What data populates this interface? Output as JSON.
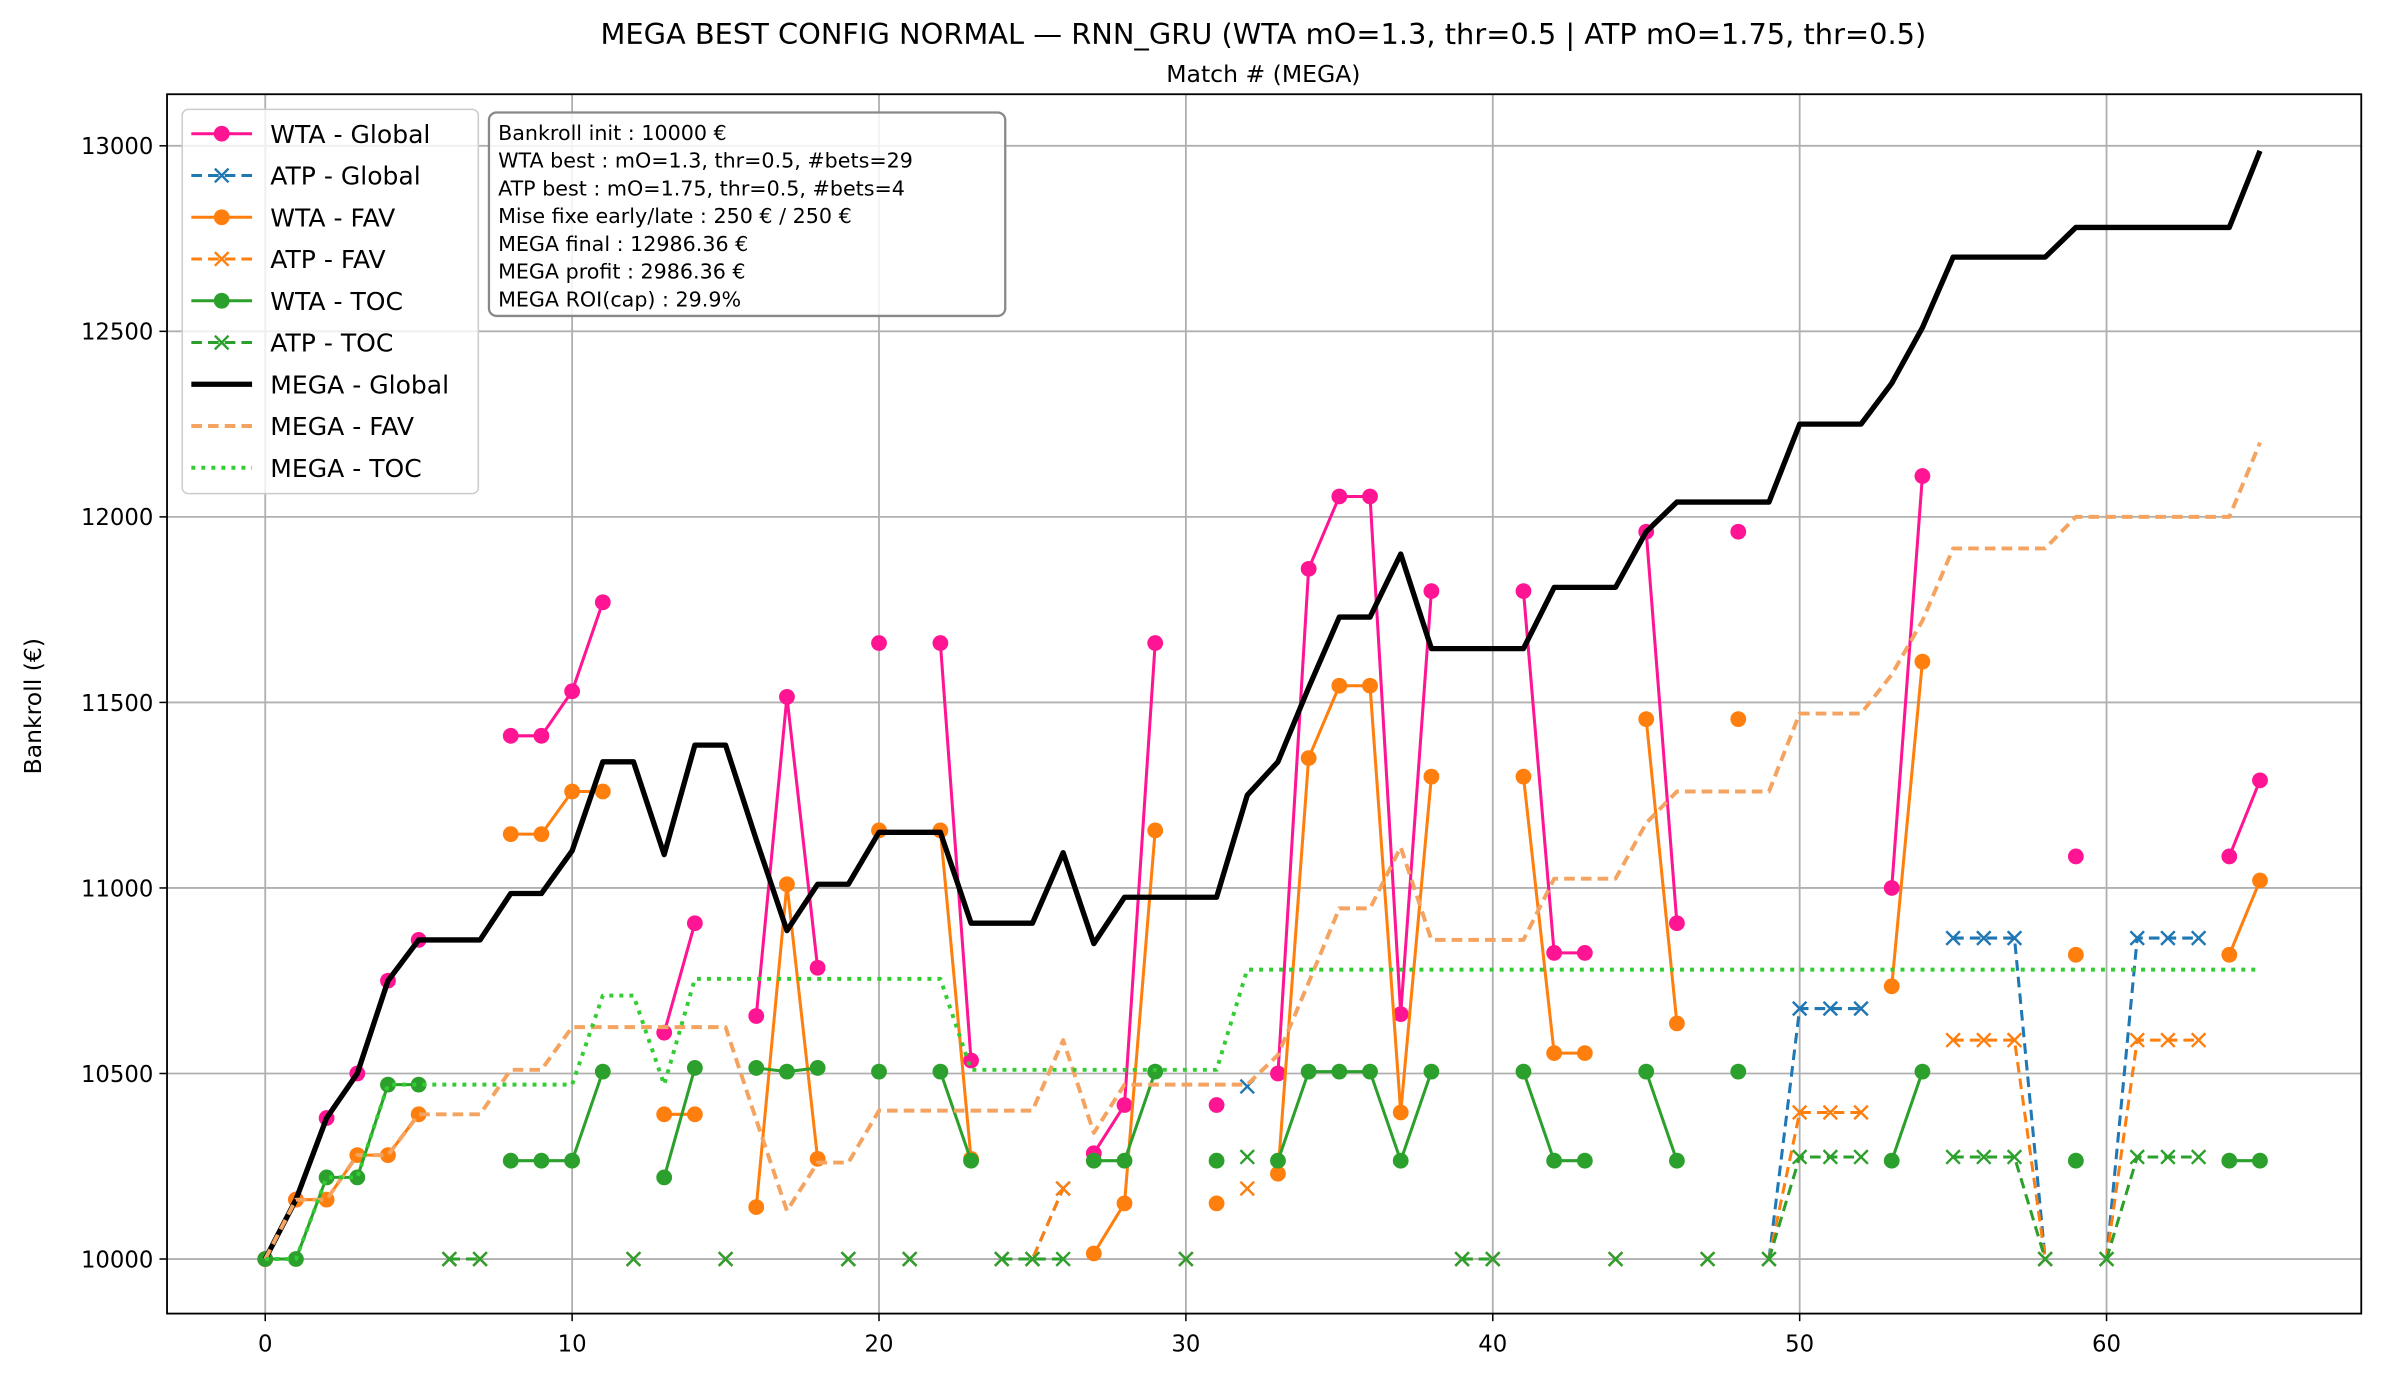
{
  "chart_data": {
    "type": "line",
    "title": "MEGA BEST CONFIG NORMAL — RNN_GRU (WTA mO=1.3, thr=0.5 | ATP mO=1.75, thr=0.5)",
    "subtitle": "Match # (MEGA)",
    "xlabel": "",
    "ylabel": "Bankroll (€)",
    "xlim": [
      -3.2,
      68.3
    ],
    "ylim": [
      9853,
      13139
    ],
    "xticks": [
      0,
      10,
      20,
      30,
      40,
      50,
      60
    ],
    "yticks": [
      10000,
      10500,
      11000,
      11500,
      12000,
      12500,
      13000
    ],
    "grid": true,
    "legend_position": "top-left",
    "info_box": [
      "Bankroll init : 10000 €",
      "WTA best : mO=1.3, thr=0.5, #bets=29",
      "ATP best : mO=1.75, thr=0.5, #bets=4",
      "Mise fixe early/late : 250 € / 250 €",
      "MEGA final : 12986.36 €",
      "MEGA profit : 2986.36 €",
      "MEGA ROI(cap) : 29.9%"
    ],
    "series": [
      {
        "name": "WTA - Global",
        "color": "#ff1493",
        "style": "solid",
        "marker": "o",
        "width": 2,
        "x": [
          0,
          1,
          2,
          3,
          4,
          5,
          8,
          9,
          10,
          11,
          13,
          14,
          16,
          17,
          18,
          20,
          22,
          23,
          27,
          28,
          29,
          31,
          33,
          34,
          35,
          36,
          37,
          38,
          41,
          42,
          43,
          45,
          46,
          48,
          53,
          54,
          59,
          64,
          65
        ],
        "y": [
          10000,
          10160,
          10380,
          10500,
          10750,
          10860,
          11410,
          11410,
          11530,
          11770,
          10610,
          10905,
          10655,
          11515,
          10785,
          11660,
          11660,
          10535,
          10285,
          10415,
          11660,
          10415,
          10500,
          11860,
          12055,
          12055,
          10660,
          11800,
          11800,
          10825,
          10825,
          11960,
          10905,
          11960,
          11000,
          12110,
          11085,
          11085,
          11290
        ]
      },
      {
        "name": "ATP - Global",
        "color": "#1f77b4",
        "style": "dashed",
        "marker": "x",
        "width": 2,
        "x": [
          6,
          7,
          12,
          15,
          19,
          21,
          24,
          25,
          26,
          30,
          32,
          39,
          40,
          44,
          47,
          49,
          50,
          51,
          52,
          55,
          56,
          57,
          58,
          60,
          61,
          62,
          63
        ],
        "y": [
          10000,
          10000,
          10000,
          10000,
          10000,
          10000,
          10000,
          10000,
          10190,
          10000,
          10465,
          10000,
          10000,
          10000,
          10000,
          10000,
          10675,
          10675,
          10675,
          10865,
          10865,
          10865,
          10000,
          10000,
          10865,
          10865,
          10865
        ]
      },
      {
        "name": "WTA - FAV",
        "color": "#ff7f0e",
        "style": "solid",
        "marker": "o",
        "width": 2,
        "x": [
          0,
          1,
          2,
          3,
          4,
          5,
          8,
          9,
          10,
          11,
          13,
          14,
          16,
          17,
          18,
          20,
          22,
          23,
          27,
          28,
          29,
          31,
          33,
          34,
          35,
          36,
          37,
          38,
          41,
          42,
          43,
          45,
          46,
          48,
          53,
          54,
          59,
          64,
          65
        ],
        "y": [
          10000,
          10160,
          10160,
          10280,
          10280,
          10390,
          11145,
          11145,
          11260,
          11260,
          10390,
          10390,
          10140,
          11010,
          10270,
          11155,
          11155,
          10270,
          10015,
          10150,
          11155,
          10150,
          10230,
          11350,
          11545,
          11545,
          10395,
          11300,
          11300,
          10555,
          10555,
          11455,
          10635,
          11455,
          10735,
          11610,
          10820,
          10820,
          11020
        ]
      },
      {
        "name": "ATP - FAV",
        "color": "#ff7f0e",
        "style": "dashed",
        "marker": "x",
        "width": 2,
        "x": [
          6,
          7,
          12,
          15,
          19,
          21,
          24,
          25,
          26,
          30,
          32,
          39,
          40,
          44,
          47,
          49,
          50,
          51,
          52,
          55,
          56,
          57,
          58,
          60,
          61,
          62,
          63
        ],
        "y": [
          10000,
          10000,
          10000,
          10000,
          10000,
          10000,
          10000,
          10000,
          10190,
          10000,
          10190,
          10000,
          10000,
          10000,
          10000,
          10000,
          10395,
          10395,
          10395,
          10590,
          10590,
          10590,
          10000,
          10000,
          10590,
          10590,
          10590
        ]
      },
      {
        "name": "WTA - TOC",
        "color": "#2ca02c",
        "style": "solid",
        "marker": "o",
        "width": 2,
        "x": [
          0,
          1,
          2,
          3,
          4,
          5,
          8,
          9,
          10,
          11,
          13,
          14,
          16,
          17,
          18,
          20,
          22,
          23,
          27,
          28,
          29,
          31,
          33,
          34,
          35,
          36,
          37,
          38,
          41,
          42,
          43,
          45,
          46,
          48,
          53,
          54,
          59,
          64,
          65
        ],
        "y": [
          10000,
          10000,
          10220,
          10220,
          10470,
          10470,
          10265,
          10265,
          10265,
          10505,
          10220,
          10515,
          10515,
          10505,
          10515,
          10505,
          10505,
          10265,
          10265,
          10265,
          10505,
          10265,
          10265,
          10505,
          10505,
          10505,
          10265,
          10505,
          10505,
          10265,
          10265,
          10505,
          10265,
          10505,
          10265,
          10505,
          10265,
          10265,
          10265
        ]
      },
      {
        "name": "ATP - TOC",
        "color": "#2ca02c",
        "style": "dashed",
        "marker": "x",
        "width": 2,
        "x": [
          6,
          7,
          12,
          15,
          19,
          21,
          24,
          25,
          26,
          30,
          32,
          39,
          40,
          44,
          47,
          49,
          50,
          51,
          52,
          55,
          56,
          57,
          58,
          60,
          61,
          62,
          63
        ],
        "y": [
          10000,
          10000,
          10000,
          10000,
          10000,
          10000,
          10000,
          10000,
          10000,
          10000,
          10275,
          10000,
          10000,
          10000,
          10000,
          10000,
          10275,
          10275,
          10275,
          10275,
          10275,
          10275,
          10000,
          10000,
          10275,
          10275,
          10275
        ]
      },
      {
        "name": "MEGA - Global",
        "color": "#000000",
        "style": "solid",
        "marker": "none",
        "width": 3.5,
        "x": [
          0,
          1,
          2,
          3,
          4,
          5,
          6,
          7,
          8,
          9,
          10,
          11,
          12,
          13,
          14,
          15,
          16,
          17,
          18,
          19,
          20,
          21,
          22,
          23,
          24,
          25,
          26,
          27,
          28,
          29,
          30,
          31,
          32,
          33,
          34,
          35,
          36,
          37,
          38,
          39,
          40,
          41,
          42,
          43,
          44,
          45,
          46,
          47,
          48,
          49,
          50,
          51,
          52,
          53,
          54,
          55,
          56,
          57,
          58,
          59,
          60,
          61,
          62,
          63,
          64,
          65
        ],
        "y": [
          10000,
          10160,
          10380,
          10500,
          10750,
          10860,
          10860,
          10860,
          10985,
          10985,
          11100,
          11340,
          11340,
          11090,
          11385,
          11385,
          11130,
          10885,
          11010,
          11010,
          11150,
          11150,
          11150,
          10905,
          10905,
          10905,
          11095,
          10850,
          10975,
          10975,
          10975,
          10975,
          11250,
          11340,
          11540,
          11730,
          11730,
          11900,
          11645,
          11645,
          11645,
          11645,
          11810,
          11810,
          11810,
          11960,
          12040,
          12040,
          12040,
          12040,
          12250,
          12250,
          12250,
          12360,
          12510,
          12700,
          12700,
          12700,
          12700,
          12780,
          12780,
          12780,
          12780,
          12780,
          12780,
          12986.36
        ]
      },
      {
        "name": "MEGA - FAV",
        "color": "#f4a460",
        "style": "dashed",
        "marker": "none",
        "width": 2.6,
        "x": [
          0,
          1,
          2,
          3,
          4,
          5,
          6,
          7,
          8,
          9,
          10,
          11,
          12,
          13,
          14,
          15,
          16,
          17,
          18,
          19,
          20,
          21,
          22,
          23,
          24,
          25,
          26,
          27,
          28,
          29,
          30,
          31,
          32,
          33,
          34,
          35,
          36,
          37,
          38,
          39,
          40,
          41,
          42,
          43,
          44,
          45,
          46,
          47,
          48,
          49,
          50,
          51,
          52,
          53,
          54,
          55,
          56,
          57,
          58,
          59,
          60,
          61,
          62,
          63,
          64,
          65
        ],
        "y": [
          10000,
          10160,
          10160,
          10280,
          10280,
          10390,
          10390,
          10390,
          10510,
          10510,
          10625,
          10625,
          10625,
          10625,
          10625,
          10625,
          10375,
          10130,
          10260,
          10260,
          10400,
          10400,
          10400,
          10400,
          10400,
          10400,
          10590,
          10340,
          10470,
          10470,
          10470,
          10470,
          10470,
          10550,
          10745,
          10945,
          10945,
          11110,
          10860,
          10860,
          10860,
          10860,
          11025,
          11025,
          11025,
          11175,
          11260,
          11260,
          11260,
          11260,
          11470,
          11470,
          11470,
          11575,
          11720,
          11915,
          11915,
          11915,
          11915,
          12000,
          12000,
          12000,
          12000,
          12000,
          12000,
          12200
        ]
      },
      {
        "name": "MEGA - TOC",
        "color": "#32cd32",
        "style": "dotted",
        "marker": "none",
        "width": 2.6,
        "x": [
          0,
          1,
          2,
          3,
          4,
          5,
          6,
          7,
          8,
          9,
          10,
          11,
          12,
          13,
          14,
          15,
          16,
          17,
          18,
          19,
          20,
          21,
          22,
          23,
          24,
          25,
          26,
          27,
          28,
          29,
          30,
          31,
          32,
          33,
          34,
          35,
          36,
          37,
          38,
          39,
          40,
          41,
          42,
          43,
          44,
          45,
          46,
          47,
          48,
          49,
          50,
          51,
          52,
          53,
          54,
          55,
          56,
          57,
          58,
          59,
          60,
          61,
          62,
          63,
          64,
          65
        ],
        "y": [
          10000,
          10000,
          10220,
          10220,
          10470,
          10470,
          10470,
          10470,
          10470,
          10470,
          10470,
          10710,
          10710,
          10470,
          10755,
          10755,
          10755,
          10755,
          10755,
          10755,
          10755,
          10755,
          10755,
          10510,
          10510,
          10510,
          10510,
          10510,
          10510,
          10510,
          10510,
          10510,
          10780,
          10780,
          10780,
          10780,
          10780,
          10780,
          10780,
          10780,
          10780,
          10780,
          10780,
          10780,
          10780,
          10780,
          10780,
          10780,
          10780,
          10780,
          10780,
          10780,
          10780,
          10780,
          10780,
          10780,
          10780,
          10780,
          10780,
          10780,
          10780,
          10780,
          10780,
          10780,
          10780,
          10780
        ]
      }
    ]
  }
}
